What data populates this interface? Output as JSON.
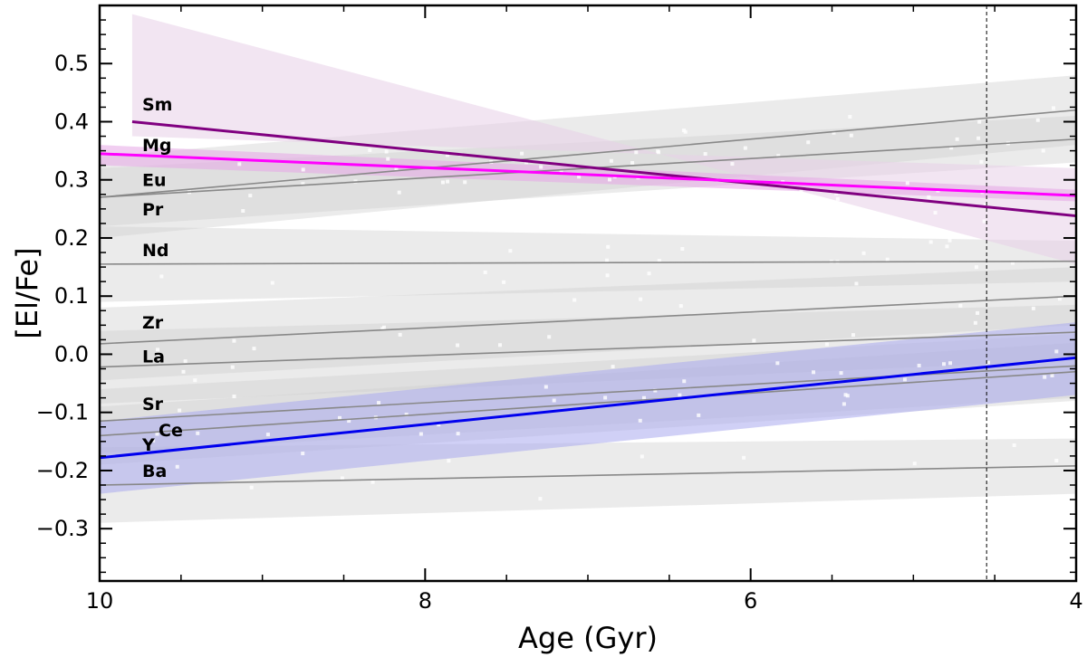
{
  "chart_data": {
    "type": "line",
    "xlabel": "Age (Gyr)",
    "ylabel": "[El/Fe]",
    "xlim": [
      10,
      4
    ],
    "ylim": [
      -0.39,
      0.6
    ],
    "x_ticks": [
      10,
      8,
      6,
      4
    ],
    "y_ticks": [
      -0.3,
      -0.2,
      -0.1,
      0.0,
      0.1,
      0.2,
      0.3,
      0.4,
      0.5
    ],
    "y_tick_labels": [
      "−0.3",
      "−0.2",
      "−0.1",
      "0.0",
      "0.1",
      "0.2",
      "0.3",
      "0.4",
      "0.5"
    ],
    "x_tick_labels": [
      "10",
      "8",
      "6",
      "4"
    ],
    "reference_line_x": 4.55,
    "grid": false,
    "colors": {
      "highlight_sm": "#800080",
      "highlight_mg": "#ff00ff",
      "highlight_y": "#0000ee",
      "band_sm": "#e8cfe8",
      "band_mg": "#e6a6e6",
      "band_y": "#a9aaee",
      "gray_line": "#888888",
      "gray_band": "#d0d0d0"
    },
    "series": [
      {
        "name": "Sm",
        "x": [
          9.8,
          4.0
        ],
        "y": [
          0.4,
          0.238
        ],
        "band": [
          [
            0.585,
            0.155
          ],
          [
            0.375,
            0.32
          ]
        ],
        "color": "#800080",
        "band_color": "#e8cfe8",
        "highlight": true,
        "label_y": 0.43
      },
      {
        "name": "Mg",
        "x": [
          10.0,
          4.0
        ],
        "y": [
          0.345,
          0.273
        ],
        "band": [
          [
            0.36,
            0.283
          ],
          [
            0.325,
            0.263
          ]
        ],
        "color": "#ff00ff",
        "band_color": "#e6a6e6",
        "highlight": true,
        "label_y": 0.36
      },
      {
        "name": "Eu",
        "x": [
          10.0,
          4.0
        ],
        "y": [
          0.27,
          0.37
        ],
        "band": [
          [
            0.32,
            0.41
          ],
          [
            0.22,
            0.33
          ]
        ],
        "color": "#888888",
        "band_color": "#d0d0d0",
        "highlight": false,
        "label_y": 0.3
      },
      {
        "name": "Pr",
        "x": [
          10.0,
          4.0
        ],
        "y": [
          0.27,
          0.42
        ],
        "band": [
          [
            0.34,
            0.48
          ],
          [
            0.2,
            0.36
          ]
        ],
        "color": "#888888",
        "band_color": "#d0d0d0",
        "highlight": false,
        "label_y": 0.25
      },
      {
        "name": "Nd",
        "x": [
          10.0,
          4.0
        ],
        "y": [
          0.155,
          0.16
        ],
        "band": [
          [
            0.22,
            0.195
          ],
          [
            0.09,
            0.125
          ]
        ],
        "color": "#888888",
        "band_color": "#d0d0d0",
        "highlight": false,
        "label_y": 0.18
      },
      {
        "name": "Zr",
        "x": [
          10.0,
          4.0
        ],
        "y": [
          0.018,
          0.1
        ],
        "band": [
          [
            0.08,
            0.15
          ],
          [
            -0.045,
            0.05
          ]
        ],
        "color": "#888888",
        "band_color": "#d0d0d0",
        "highlight": false,
        "label_y": 0.055
      },
      {
        "name": "La",
        "x": [
          10.0,
          4.0
        ],
        "y": [
          -0.022,
          0.038
        ],
        "band": [
          [
            0.04,
            0.085
          ],
          [
            -0.085,
            -0.01
          ]
        ],
        "color": "#888888",
        "band_color": "#d0d0d0",
        "highlight": false,
        "label_y": -0.003
      },
      {
        "name": "Sr",
        "x": [
          10.0,
          4.0
        ],
        "y": [
          -0.115,
          -0.02
        ],
        "band": [
          [
            -0.06,
            0.035
          ],
          [
            -0.17,
            -0.075
          ]
        ],
        "color": "#888888",
        "band_color": "#d0d0d0",
        "highlight": false,
        "label_y": -0.085
      },
      {
        "name": "Ce",
        "x": [
          10.0,
          4.0
        ],
        "y": [
          -0.14,
          -0.03
        ],
        "band": [
          [
            -0.09,
            0.02
          ],
          [
            -0.19,
            -0.08
          ]
        ],
        "color": "#888888",
        "band_color": "#d0d0d0",
        "highlight": false,
        "label_y": -0.13
      },
      {
        "name": "Y",
        "x": [
          10.0,
          4.0
        ],
        "y": [
          -0.178,
          -0.006
        ],
        "band": [
          [
            -0.115,
            0.055
          ],
          [
            -0.24,
            -0.07
          ]
        ],
        "color": "#0000ee",
        "band_color": "#a9aaee",
        "highlight": true,
        "label_y": -0.155
      },
      {
        "name": "Ba",
        "x": [
          10.0,
          4.0
        ],
        "y": [
          -0.225,
          -0.192
        ],
        "band": [
          [
            -0.16,
            -0.145
          ],
          [
            -0.29,
            -0.24
          ]
        ],
        "color": "#888888",
        "band_color": "#d0d0d0",
        "highlight": false,
        "label_y": -0.2
      }
    ]
  }
}
